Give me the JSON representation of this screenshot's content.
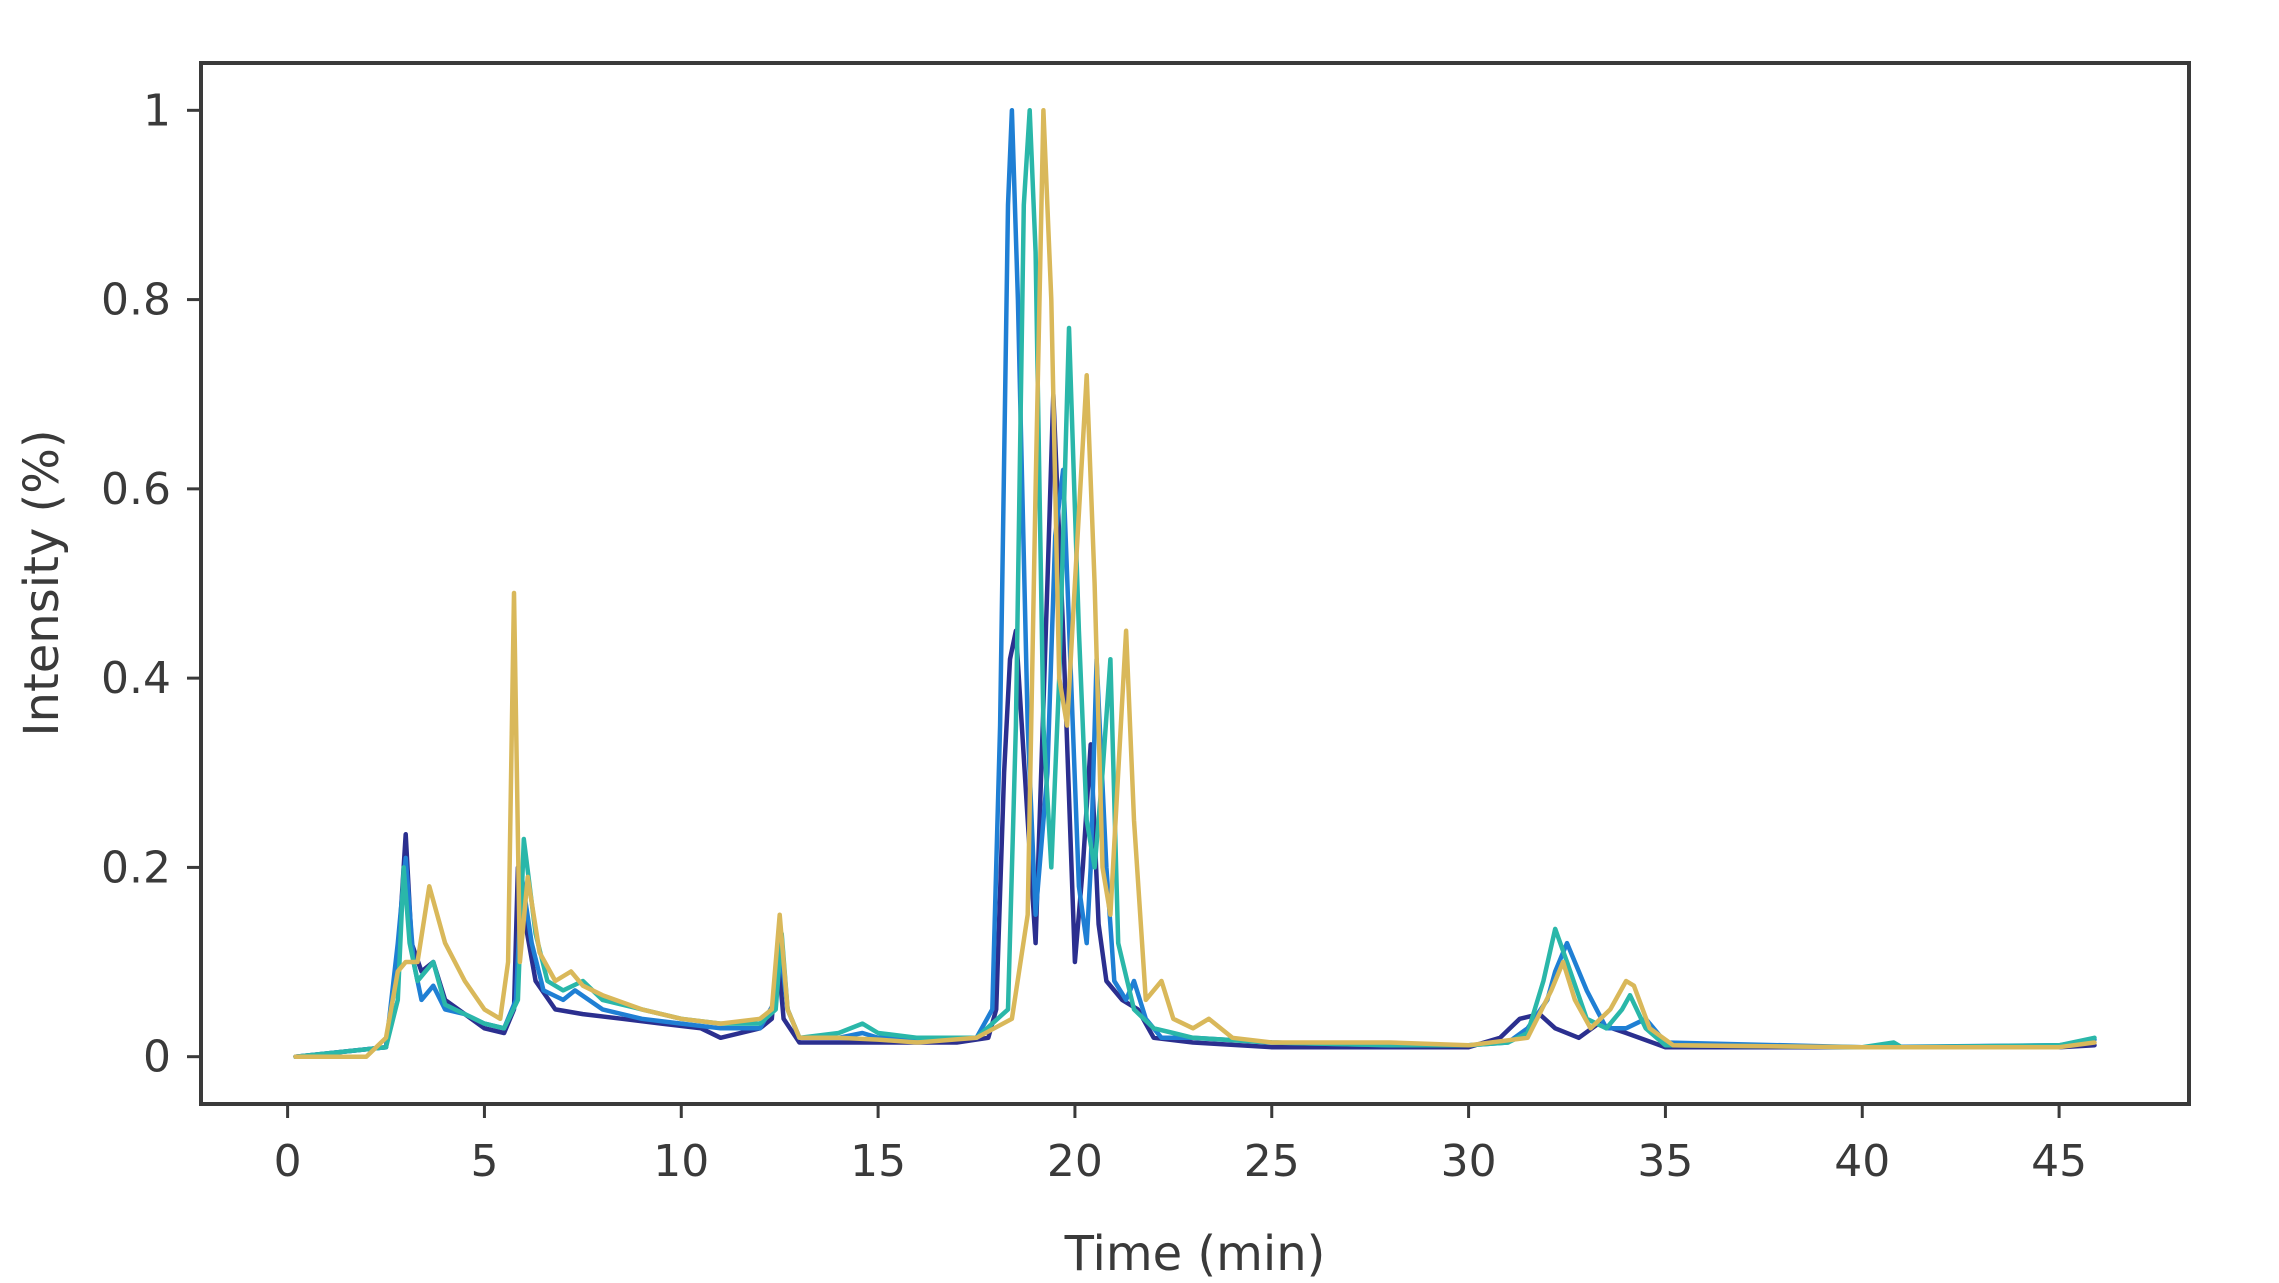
{
  "chart_data": {
    "type": "line",
    "title": "",
    "xlabel": "Time (min)",
    "ylabel": "Intensity (%)",
    "xlim": [
      -2.2,
      48.3
    ],
    "ylim": [
      -0.05,
      1.05
    ],
    "xticks": [
      0,
      5,
      10,
      15,
      20,
      25,
      30,
      35,
      40,
      45
    ],
    "yticks": [
      0,
      0.2,
      0.4,
      0.6,
      0.8,
      1
    ],
    "xtick_labels": [
      "0",
      "5",
      "10",
      "15",
      "20",
      "25",
      "30",
      "35",
      "40",
      "45"
    ],
    "ytick_labels": [
      "0",
      "0.2",
      "0.4",
      "0.6",
      "0.8",
      "1"
    ],
    "grid": false,
    "legend": "none",
    "series": [
      {
        "color": "#2b2f8f",
        "x": [
          0.2,
          2.5,
          2.8,
          3.0,
          3.15,
          3.4,
          3.7,
          4.0,
          4.5,
          5.0,
          5.5,
          5.75,
          5.85,
          6.0,
          6.3,
          6.8,
          7.5,
          8.5,
          9.5,
          10.5,
          11.0,
          12.0,
          12.3,
          12.45,
          12.6,
          13.0,
          14.0,
          15.0,
          16.0,
          17.0,
          17.8,
          18.0,
          18.2,
          18.35,
          18.5,
          18.8,
          19.0,
          19.3,
          19.45,
          19.7,
          20.0,
          20.2,
          20.4,
          20.6,
          20.8,
          21.2,
          21.6,
          22.0,
          23.0,
          25.0,
          28.0,
          30.0,
          30.8,
          31.3,
          31.8,
          32.2,
          32.8,
          33.3,
          34.0,
          35.0,
          40.0,
          45.0,
          45.9
        ],
        "y": [
          0.0,
          0.01,
          0.1,
          0.235,
          0.12,
          0.09,
          0.1,
          0.06,
          0.045,
          0.03,
          0.025,
          0.05,
          0.2,
          0.15,
          0.08,
          0.05,
          0.045,
          0.04,
          0.035,
          0.03,
          0.02,
          0.03,
          0.04,
          0.11,
          0.04,
          0.015,
          0.015,
          0.015,
          0.015,
          0.015,
          0.02,
          0.05,
          0.3,
          0.42,
          0.45,
          0.25,
          0.12,
          0.5,
          0.7,
          0.45,
          0.1,
          0.2,
          0.33,
          0.14,
          0.08,
          0.06,
          0.05,
          0.02,
          0.015,
          0.01,
          0.01,
          0.01,
          0.02,
          0.04,
          0.045,
          0.03,
          0.02,
          0.035,
          0.025,
          0.01,
          0.01,
          0.01,
          0.012
        ]
      },
      {
        "color": "#1f7fd4",
        "x": [
          0.2,
          2.5,
          2.8,
          3.0,
          3.2,
          3.4,
          3.7,
          4.0,
          4.5,
          5.0,
          5.5,
          5.8,
          5.95,
          6.2,
          6.5,
          7.0,
          7.3,
          8.0,
          9.0,
          10.0,
          11.0,
          12.0,
          12.4,
          12.5,
          12.7,
          13.0,
          14.0,
          14.6,
          15.0,
          16.0,
          17.5,
          17.9,
          18.1,
          18.3,
          18.4,
          18.55,
          18.8,
          19.0,
          19.3,
          19.5,
          19.7,
          19.9,
          20.1,
          20.3,
          20.4,
          20.55,
          20.8,
          21.0,
          21.3,
          21.5,
          21.8,
          22.2,
          23.0,
          25.0,
          28.0,
          30.0,
          31.0,
          31.5,
          32.0,
          32.2,
          32.5,
          33.0,
          33.5,
          34.0,
          34.5,
          35.0,
          40.0,
          45.0,
          45.9
        ],
        "y": [
          0.0,
          0.01,
          0.12,
          0.21,
          0.1,
          0.06,
          0.075,
          0.05,
          0.045,
          0.035,
          0.03,
          0.06,
          0.19,
          0.12,
          0.07,
          0.06,
          0.07,
          0.05,
          0.04,
          0.035,
          0.03,
          0.03,
          0.06,
          0.12,
          0.05,
          0.02,
          0.02,
          0.025,
          0.02,
          0.02,
          0.02,
          0.05,
          0.35,
          0.9,
          1.0,
          0.8,
          0.35,
          0.15,
          0.3,
          0.55,
          0.62,
          0.4,
          0.18,
          0.12,
          0.2,
          0.42,
          0.2,
          0.08,
          0.06,
          0.08,
          0.04,
          0.02,
          0.02,
          0.015,
          0.012,
          0.012,
          0.015,
          0.03,
          0.06,
          0.09,
          0.12,
          0.07,
          0.03,
          0.03,
          0.04,
          0.015,
          0.01,
          0.012,
          0.018
        ]
      },
      {
        "color": "#2ab7a9",
        "x": [
          0.2,
          2.5,
          2.8,
          2.95,
          3.1,
          3.3,
          3.7,
          4.0,
          4.5,
          5.0,
          5.5,
          5.85,
          6.0,
          6.3,
          6.6,
          7.0,
          7.5,
          8.0,
          9.0,
          10.0,
          11.0,
          12.0,
          12.4,
          12.55,
          12.7,
          13.0,
          14.0,
          14.6,
          15.0,
          16.0,
          17.5,
          18.3,
          18.5,
          18.7,
          18.85,
          19.0,
          19.2,
          19.4,
          19.6,
          19.85,
          20.1,
          20.3,
          20.5,
          20.7,
          20.9,
          21.1,
          21.5,
          22.0,
          22.5,
          23.0,
          25.0,
          28.0,
          30.0,
          31.0,
          31.5,
          31.9,
          32.2,
          32.5,
          33.0,
          33.5,
          33.9,
          34.1,
          34.5,
          35.0,
          40.0,
          40.8,
          41.0,
          45.0,
          45.9
        ],
        "y": [
          0.0,
          0.01,
          0.06,
          0.2,
          0.12,
          0.08,
          0.1,
          0.055,
          0.045,
          0.035,
          0.03,
          0.06,
          0.23,
          0.13,
          0.08,
          0.07,
          0.08,
          0.06,
          0.05,
          0.04,
          0.035,
          0.035,
          0.05,
          0.13,
          0.05,
          0.02,
          0.025,
          0.035,
          0.025,
          0.02,
          0.02,
          0.05,
          0.35,
          0.9,
          1.0,
          0.85,
          0.35,
          0.2,
          0.4,
          0.77,
          0.45,
          0.25,
          0.2,
          0.3,
          0.42,
          0.12,
          0.05,
          0.03,
          0.025,
          0.02,
          0.015,
          0.012,
          0.012,
          0.015,
          0.025,
          0.08,
          0.135,
          0.1,
          0.04,
          0.03,
          0.05,
          0.065,
          0.03,
          0.012,
          0.01,
          0.015,
          0.01,
          0.012,
          0.02
        ]
      },
      {
        "color": "#d9b85a",
        "x": [
          0.2,
          2.0,
          2.5,
          2.8,
          3.0,
          3.3,
          3.6,
          4.0,
          4.5,
          5.0,
          5.4,
          5.6,
          5.75,
          5.9,
          6.1,
          6.4,
          6.8,
          7.2,
          7.5,
          8.0,
          9.0,
          10.0,
          11.0,
          12.0,
          12.3,
          12.5,
          12.7,
          13.0,
          14.0,
          15.0,
          16.0,
          17.5,
          18.4,
          18.8,
          19.0,
          19.2,
          19.4,
          19.6,
          19.8,
          20.0,
          20.3,
          20.5,
          20.7,
          20.9,
          21.1,
          21.3,
          21.5,
          21.8,
          22.2,
          22.5,
          23.0,
          23.4,
          24.0,
          25.0,
          28.0,
          30.0,
          31.5,
          32.1,
          32.4,
          32.7,
          33.1,
          33.6,
          34.0,
          34.2,
          34.6,
          35.2,
          40.0,
          45.0,
          45.9
        ],
        "y": [
          0.0,
          0.0,
          0.02,
          0.09,
          0.1,
          0.1,
          0.18,
          0.12,
          0.08,
          0.05,
          0.04,
          0.1,
          0.49,
          0.1,
          0.19,
          0.11,
          0.08,
          0.09,
          0.075,
          0.065,
          0.05,
          0.04,
          0.035,
          0.04,
          0.05,
          0.15,
          0.05,
          0.02,
          0.02,
          0.018,
          0.015,
          0.02,
          0.04,
          0.15,
          0.6,
          1.0,
          0.8,
          0.4,
          0.35,
          0.5,
          0.72,
          0.5,
          0.2,
          0.15,
          0.3,
          0.45,
          0.25,
          0.06,
          0.08,
          0.04,
          0.03,
          0.04,
          0.02,
          0.015,
          0.015,
          0.012,
          0.02,
          0.07,
          0.1,
          0.06,
          0.03,
          0.05,
          0.08,
          0.075,
          0.03,
          0.012,
          0.01,
          0.01,
          0.015
        ]
      }
    ]
  }
}
